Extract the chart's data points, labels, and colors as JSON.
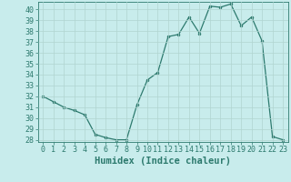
{
  "x": [
    0,
    1,
    2,
    3,
    4,
    5,
    6,
    7,
    8,
    9,
    10,
    11,
    12,
    13,
    14,
    15,
    16,
    17,
    18,
    19,
    20,
    21,
    22,
    23
  ],
  "y": [
    32,
    31.5,
    31,
    30.7,
    30.3,
    28.5,
    28.2,
    28.0,
    28.0,
    31.2,
    33.5,
    34.2,
    37.5,
    37.7,
    39.3,
    37.8,
    40.3,
    40.2,
    40.5,
    38.5,
    39.3,
    37.1,
    28.3,
    28.0
  ],
  "line_color": "#2d7a6e",
  "marker_color": "#2d7a6e",
  "bg_color": "#c8ecec",
  "grid_color": "#b0d4d0",
  "xlabel": "Humidex (Indice chaleur)",
  "ylim": [
    27.8,
    40.7
  ],
  "xlim": [
    -0.5,
    23.5
  ],
  "yticks": [
    28,
    29,
    30,
    31,
    32,
    33,
    34,
    35,
    36,
    37,
    38,
    39,
    40
  ],
  "xticks": [
    0,
    1,
    2,
    3,
    4,
    5,
    6,
    7,
    8,
    9,
    10,
    11,
    12,
    13,
    14,
    15,
    16,
    17,
    18,
    19,
    20,
    21,
    22,
    23
  ],
  "tick_label_fontsize": 6,
  "xlabel_fontsize": 7.5,
  "tick_color": "#2d7a6e",
  "axis_color": "#2d7a6e"
}
